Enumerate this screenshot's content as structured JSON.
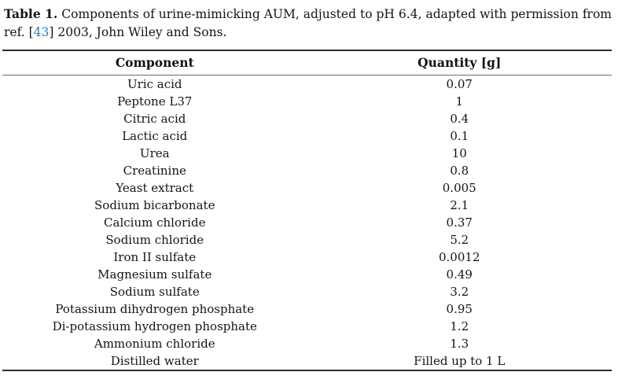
{
  "caption": {
    "label": "Table 1.",
    "line1": "Components of urine-mimicking AUM, adjusted to pH 6.4, adapted with permission from",
    "line2_before_ref": "ref. [",
    "ref_number": "43",
    "line2_after_ref": "] 2003, John Wiley and Sons."
  },
  "table": {
    "headers": [
      "Component",
      "Quantity [g]"
    ],
    "rows": [
      [
        "Uric acid",
        "0.07"
      ],
      [
        "Peptone L37",
        "1"
      ],
      [
        "Citric acid",
        "0.4"
      ],
      [
        "Lactic acid",
        "0.1"
      ],
      [
        "Urea",
        "10"
      ],
      [
        "Creatinine",
        "0.8"
      ],
      [
        "Yeast extract",
        "0.005"
      ],
      [
        "Sodium bicarbonate",
        "2.1"
      ],
      [
        "Calcium chloride",
        "0.37"
      ],
      [
        "Sodium chloride",
        "5.2"
      ],
      [
        "Iron II sulfate",
        "0.0012"
      ],
      [
        "Magnesium sulfate",
        "0.49"
      ],
      [
        "Sodium sulfate",
        "3.2"
      ],
      [
        "Potassium dihydrogen phosphate",
        "0.95"
      ],
      [
        "Di-potassium hydrogen phosphate",
        "1.2"
      ],
      [
        "Ammonium chloride",
        "1.3"
      ],
      [
        "Distilled water",
        "Filled up to 1 L"
      ]
    ]
  },
  "colors": {
    "text": "#141414",
    "reference_link": "#2e7dbe",
    "rule_heavy": "#2e2e2e",
    "rule_light": "#6e6e6e",
    "background": "#ffffff"
  }
}
